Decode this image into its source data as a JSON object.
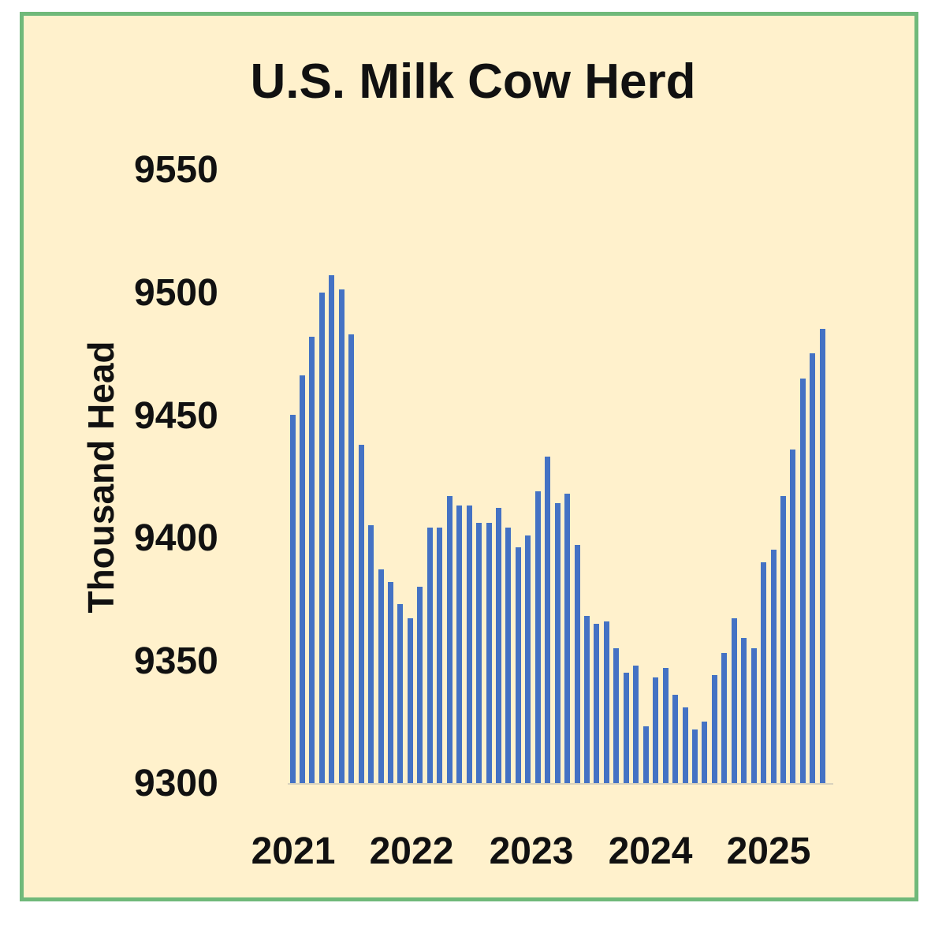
{
  "chart_data": {
    "type": "bar",
    "title": "U.S. Milk Cow Herd",
    "xlabel": "",
    "ylabel": "Thousand Head",
    "ylim": [
      9300,
      9550
    ],
    "yticks": [
      "9550",
      "9500",
      "9450",
      "9400",
      "9350",
      "9300"
    ],
    "xticks": [
      "2021",
      "2022",
      "2023",
      "2024",
      "2025"
    ],
    "grid": false,
    "legend": null,
    "bar_color": "#4472c4",
    "background_color": "#fff1cc",
    "border_color": "#70b97a",
    "categories": [
      "2021-01",
      "2021-02",
      "2021-03",
      "2021-04",
      "2021-05",
      "2021-06",
      "2021-07",
      "2021-08",
      "2021-09",
      "2021-10",
      "2021-11",
      "2021-12",
      "2022-01",
      "2022-02",
      "2022-03",
      "2022-04",
      "2022-05",
      "2022-06",
      "2022-07",
      "2022-08",
      "2022-09",
      "2022-10",
      "2022-11",
      "2022-12",
      "2023-01",
      "2023-02",
      "2023-03",
      "2023-04",
      "2023-05",
      "2023-06",
      "2023-07",
      "2023-08",
      "2023-09",
      "2023-10",
      "2023-11",
      "2023-12",
      "2024-01",
      "2024-02",
      "2024-03",
      "2024-04",
      "2024-05",
      "2024-06",
      "2024-07",
      "2024-08",
      "2024-09",
      "2024-10",
      "2024-11",
      "2024-12",
      "2025-01",
      "2025-02",
      "2025-03",
      "2025-04",
      "2025-05",
      "2025-06",
      "2025-07"
    ],
    "values": [
      9450,
      9466,
      9482,
      9500,
      9507,
      9501,
      9483,
      9438,
      9405,
      9387,
      9382,
      9373,
      9367,
      9380,
      9404,
      9404,
      9417,
      9413,
      9413,
      9406,
      9406,
      9412,
      9404,
      9396,
      9401,
      9419,
      9433,
      9414,
      9418,
      9397,
      9368,
      9365,
      9366,
      9355,
      9345,
      9348,
      9323,
      9343,
      9347,
      9336,
      9331,
      9322,
      9325,
      9344,
      9353,
      9367,
      9359,
      9355,
      9390,
      9395,
      9417,
      9436,
      9465,
      9475,
      9485
    ]
  }
}
